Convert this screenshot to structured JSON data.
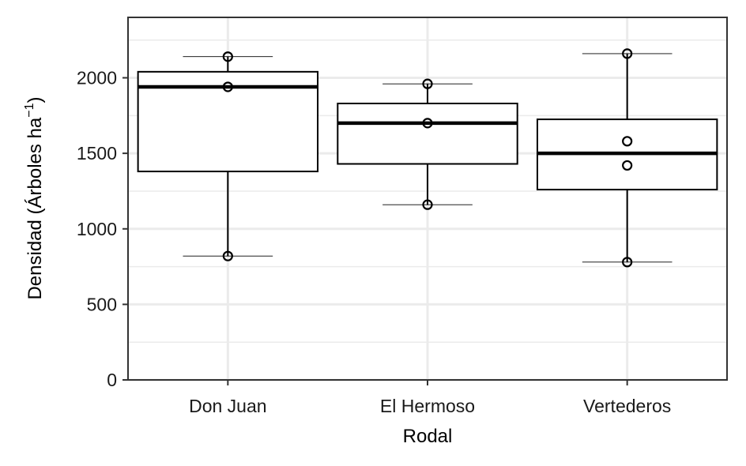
{
  "chart_data": {
    "type": "boxplot",
    "xlabel": "Rodal",
    "ylabel": {
      "main": "Densidad (Árboles ha",
      "superscript": "−1",
      "close": ")"
    },
    "ylim": [
      0,
      2400
    ],
    "yticks": [
      0,
      500,
      1000,
      1500,
      2000
    ],
    "grid": true,
    "categories": [
      "Don Juan",
      "El Hermoso",
      "Vertederos"
    ],
    "boxes": [
      {
        "name": "Don Juan",
        "whisker_low": 820,
        "q1": 1380,
        "median": 1940,
        "q3": 2040,
        "whisker_high": 2140,
        "points": [
          2140,
          1940,
          820
        ]
      },
      {
        "name": "El Hermoso",
        "whisker_low": 1160,
        "q1": 1430,
        "median": 1700,
        "q3": 1830,
        "whisker_high": 1960,
        "points": [
          1960,
          1700,
          1160
        ]
      },
      {
        "name": "Vertederos",
        "whisker_low": 780,
        "q1": 1260,
        "median": 1500,
        "q3": 1725,
        "whisker_high": 2160,
        "points": [
          2160,
          1580,
          1420,
          780
        ]
      }
    ]
  }
}
